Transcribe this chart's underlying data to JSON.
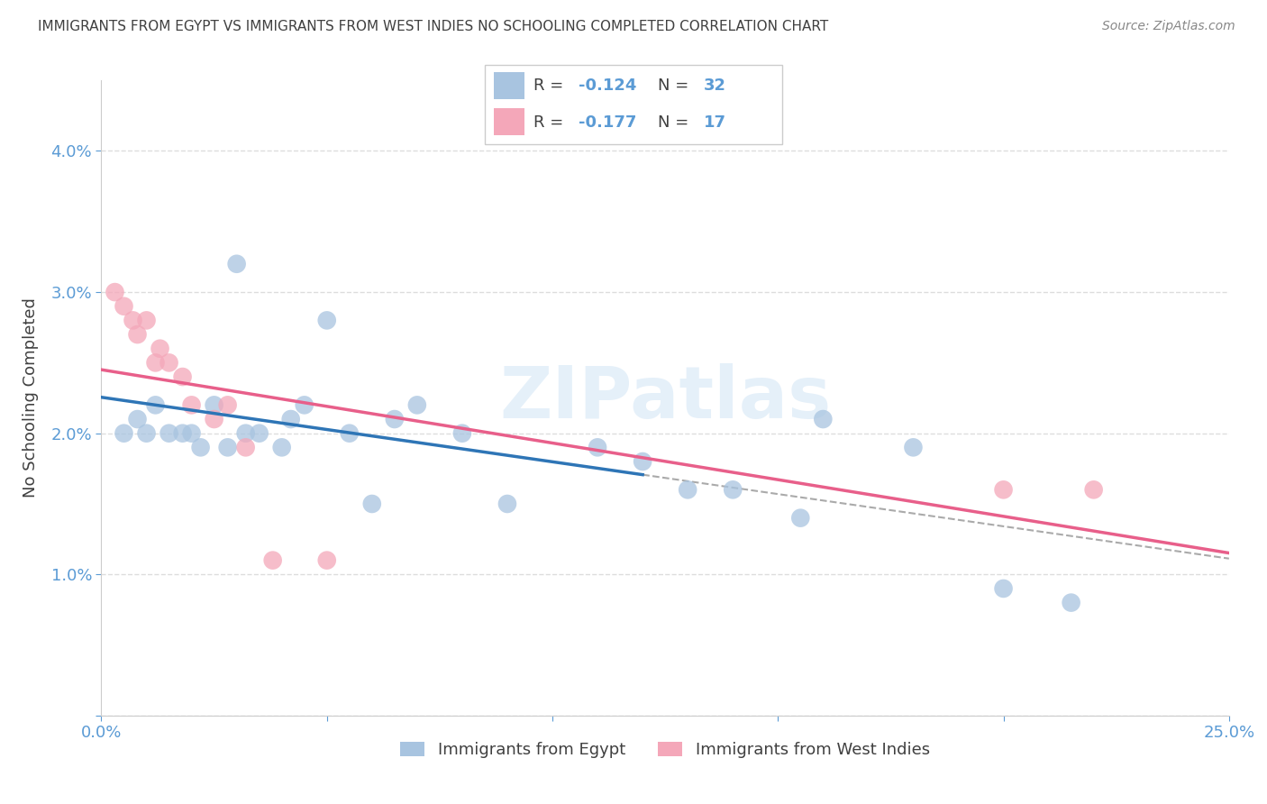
{
  "title": "IMMIGRANTS FROM EGYPT VS IMMIGRANTS FROM WEST INDIES NO SCHOOLING COMPLETED CORRELATION CHART",
  "source": "Source: ZipAtlas.com",
  "ylabel": "No Schooling Completed",
  "xlim": [
    0.0,
    0.25
  ],
  "ylim": [
    0.0,
    0.045
  ],
  "egypt_color": "#a8c4e0",
  "west_indies_color": "#f4a7b9",
  "egypt_line_color": "#2e75b6",
  "west_indies_line_color": "#e85f8a",
  "dash_color": "#aaaaaa",
  "egypt_R": -0.124,
  "egypt_N": 32,
  "west_indies_R": -0.177,
  "west_indies_N": 17,
  "egypt_x": [
    0.005,
    0.008,
    0.01,
    0.012,
    0.015,
    0.018,
    0.02,
    0.022,
    0.025,
    0.028,
    0.03,
    0.032,
    0.035,
    0.04,
    0.042,
    0.045,
    0.05,
    0.055,
    0.06,
    0.065,
    0.07,
    0.08,
    0.09,
    0.11,
    0.12,
    0.13,
    0.14,
    0.155,
    0.16,
    0.18,
    0.2,
    0.215
  ],
  "egypt_y": [
    0.02,
    0.021,
    0.02,
    0.022,
    0.02,
    0.02,
    0.02,
    0.019,
    0.022,
    0.019,
    0.032,
    0.02,
    0.02,
    0.019,
    0.021,
    0.022,
    0.028,
    0.02,
    0.015,
    0.021,
    0.022,
    0.02,
    0.015,
    0.019,
    0.018,
    0.016,
    0.016,
    0.014,
    0.021,
    0.019,
    0.009,
    0.008
  ],
  "west_indies_x": [
    0.003,
    0.005,
    0.007,
    0.008,
    0.01,
    0.012,
    0.013,
    0.015,
    0.018,
    0.02,
    0.025,
    0.028,
    0.032,
    0.038,
    0.05,
    0.2,
    0.22
  ],
  "west_indies_y": [
    0.03,
    0.029,
    0.028,
    0.027,
    0.028,
    0.025,
    0.026,
    0.025,
    0.024,
    0.022,
    0.021,
    0.022,
    0.019,
    0.011,
    0.011,
    0.016,
    0.016
  ],
  "egypt_line_x_end": 0.12,
  "watermark_text": "ZIPatlas",
  "bg_color": "#ffffff",
  "grid_color": "#dddddd",
  "title_color": "#404040",
  "tick_color": "#5b9bd5",
  "legend_val_color": "#5b9bd5",
  "legend_label_color": "#404040",
  "source_color": "#888888",
  "ylabel_color": "#404040",
  "watermark_color": "#d0e4f5",
  "spine_color": "#cccccc"
}
